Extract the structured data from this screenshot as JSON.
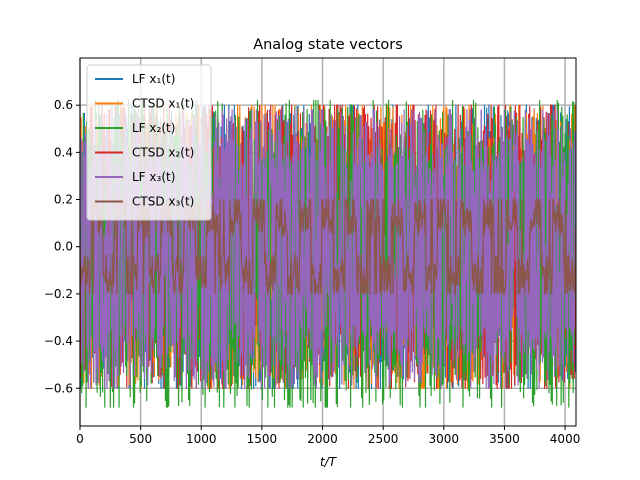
{
  "chart_data": {
    "type": "line",
    "title": "Analog state vectors",
    "xlabel": "t/T",
    "ylabel": "",
    "xlim": [
      0,
      4090
    ],
    "ylim": [
      -0.76,
      0.8
    ],
    "xticks": [
      0,
      500,
      1000,
      1500,
      2000,
      2500,
      3000,
      3500,
      4000
    ],
    "yticks": [
      -0.6,
      -0.4,
      -0.2,
      0.0,
      0.2,
      0.4,
      0.6
    ],
    "xtick_labels": [
      "0",
      "500",
      "1000",
      "1500",
      "2000",
      "2500",
      "3000",
      "3500",
      "4000"
    ],
    "ytick_labels": [
      "−0.6",
      "−0.4",
      "−0.2",
      "0.0",
      "0.2",
      "0.4",
      "0.6"
    ],
    "grid": true,
    "legend_position": "upper-left",
    "series": [
      {
        "name": "LF x₁(t)",
        "color": "#1f77b4",
        "range": [
          -0.6,
          0.6
        ]
      },
      {
        "name": "CTSD x₁(t)",
        "color": "#ff7f0e",
        "range": [
          -0.6,
          0.6
        ]
      },
      {
        "name": "LF x₂(t)",
        "color": "#2ca02c",
        "range": [
          -0.68,
          0.62
        ]
      },
      {
        "name": "CTSD x₂(t)",
        "color": "#d62728",
        "range": [
          -0.6,
          0.6
        ]
      },
      {
        "name": "LF x₃(t)",
        "color": "#9467bd",
        "range": [
          -0.6,
          0.58
        ]
      },
      {
        "name": "CTSD x₃(t)",
        "color": "#8c564b",
        "range": [
          -0.2,
          0.2
        ]
      }
    ]
  }
}
